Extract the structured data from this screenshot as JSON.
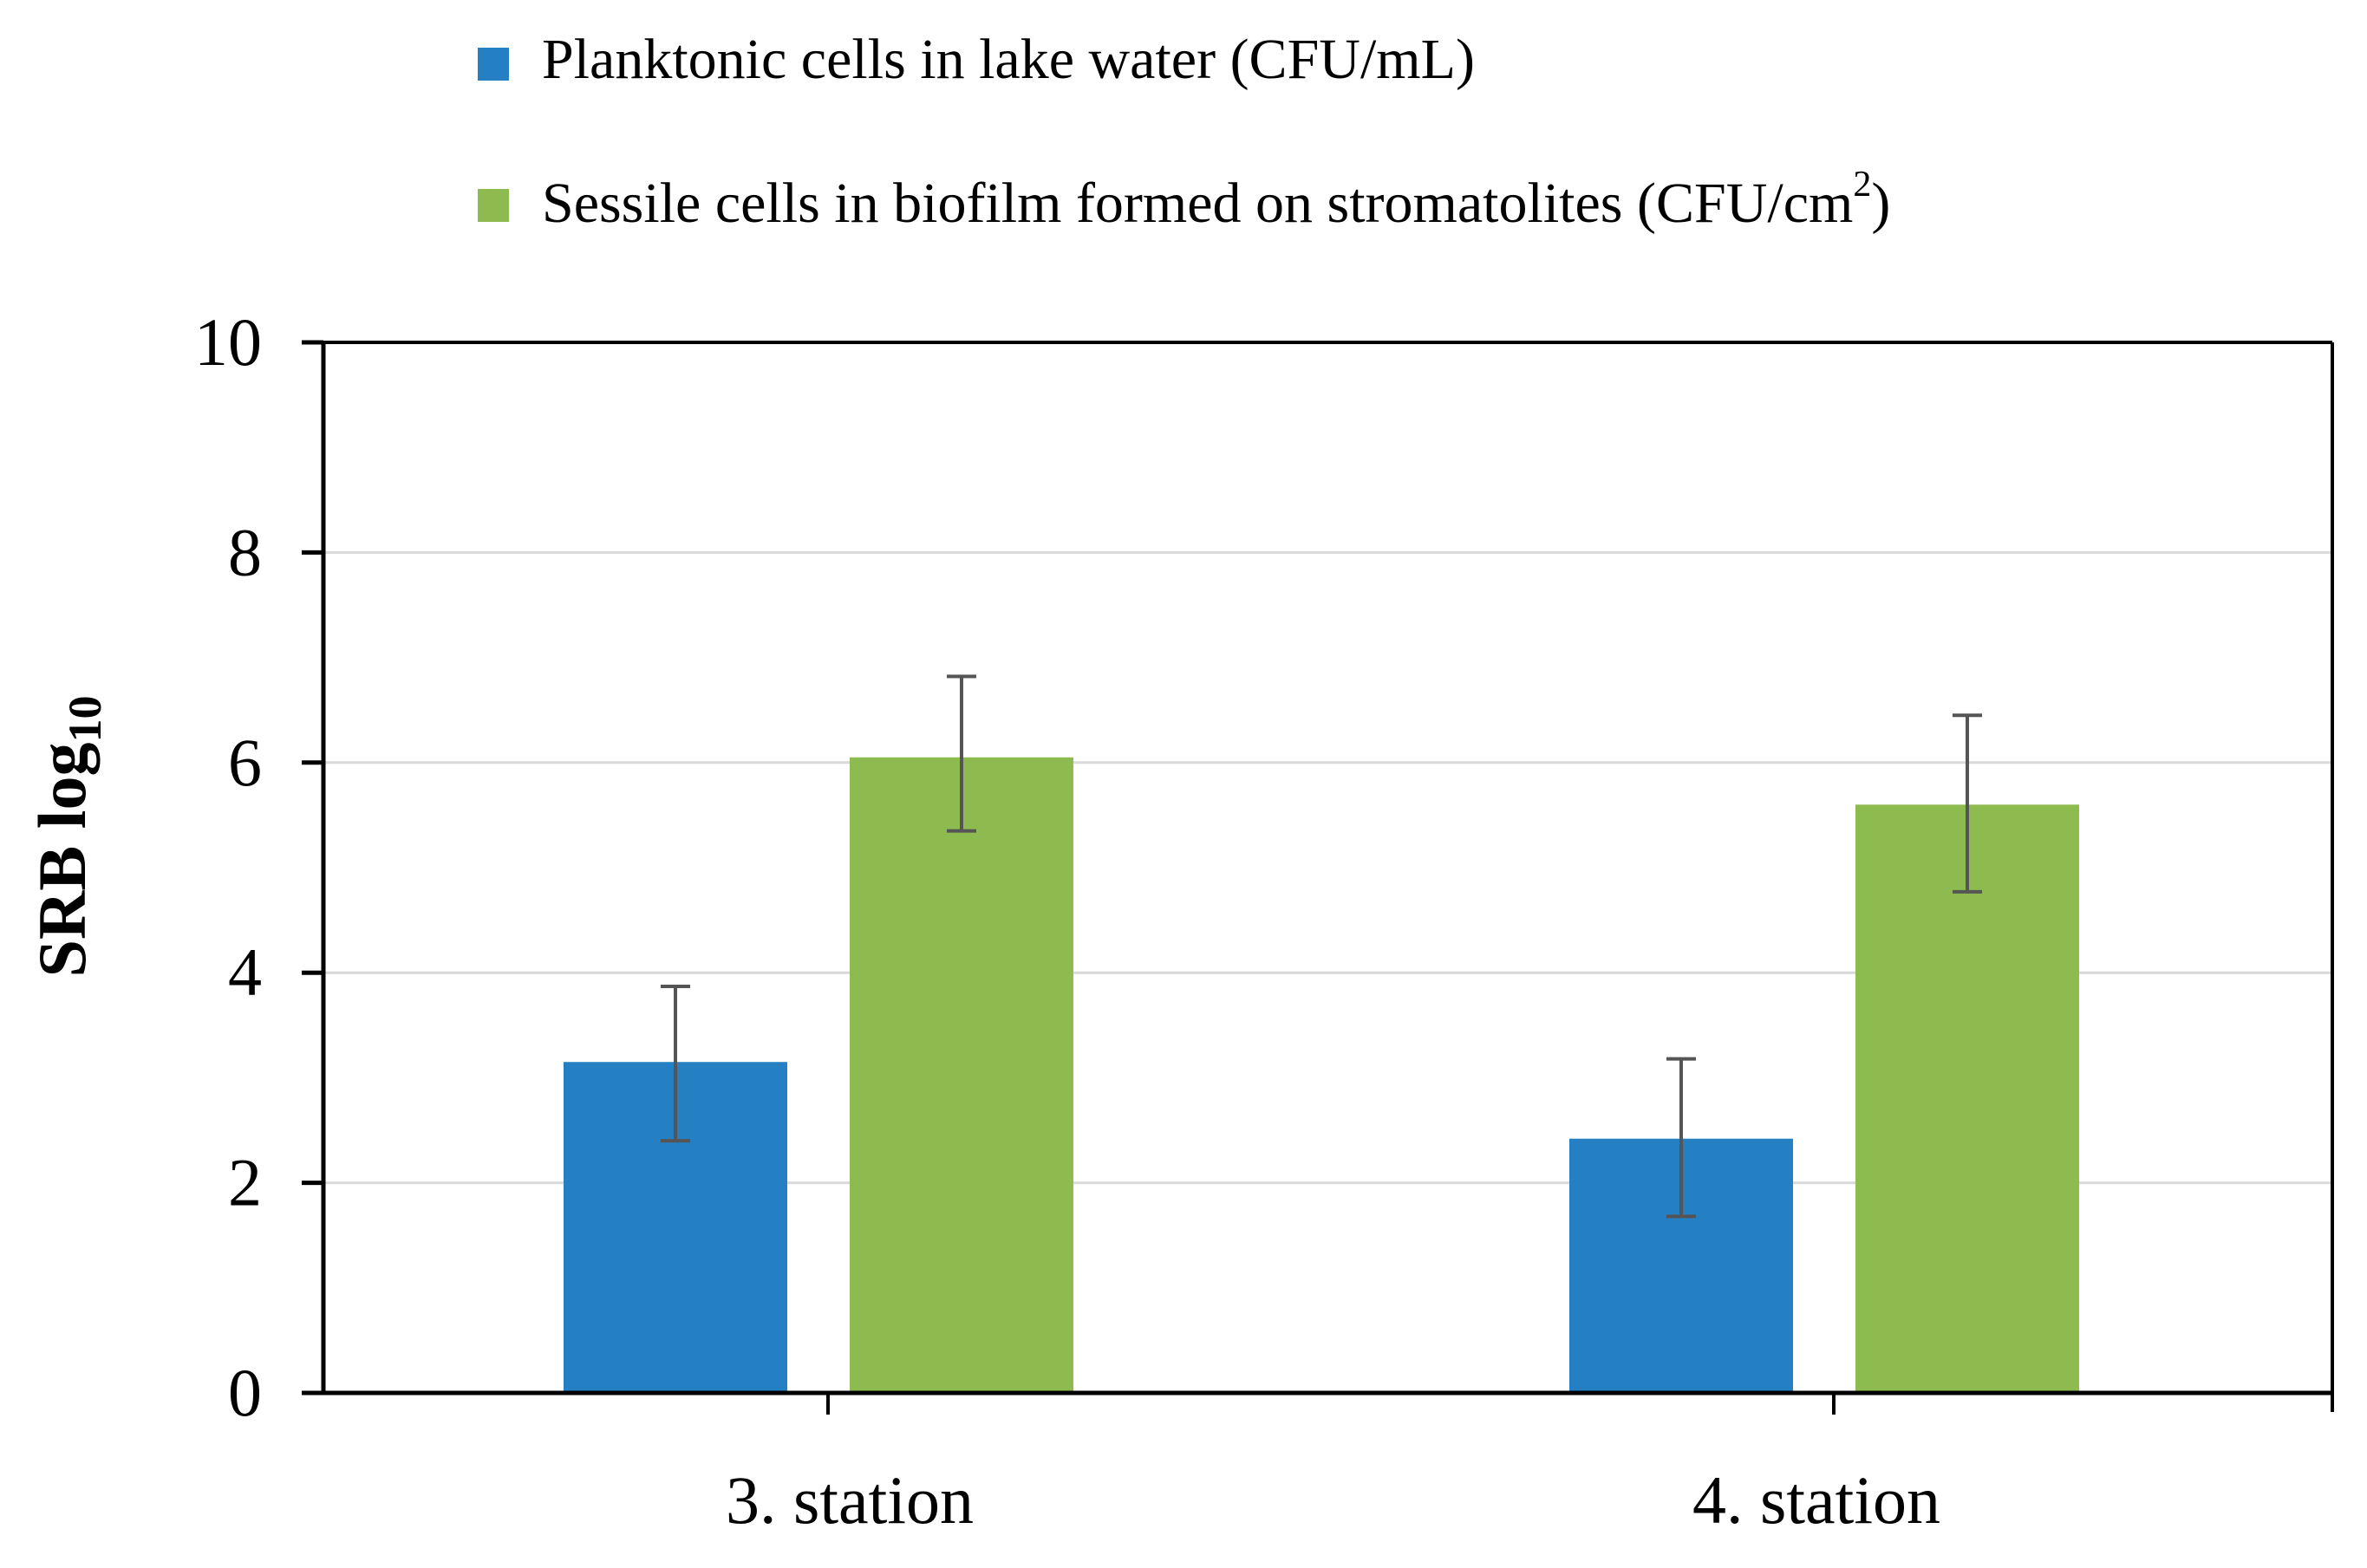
{
  "chart_data": {
    "type": "bar",
    "ylabel": {
      "main": "SRB log",
      "subscript": "10"
    },
    "ylim": [
      0,
      10
    ],
    "yticks": [
      "0",
      "2",
      "4",
      "6",
      "8",
      "10"
    ],
    "ytick_values": [
      0,
      2,
      4,
      6,
      8,
      10
    ],
    "grid": true,
    "categories": [
      "3. station",
      "4. station"
    ],
    "legend": {
      "position": "top",
      "items": [
        {
          "label": "Planktonic cells in lake water (CFU/mL)",
          "color": "#2580C3"
        },
        {
          "label": "Sessile cells in biofilm formed on stromatolites (CFU/cm",
          "superscript": "2",
          "label_end": ")",
          "color": "#8EBB4F"
        }
      ]
    },
    "series": [
      {
        "name": "Planktonic cells in lake water (CFU/mL)",
        "color": "#2580C3",
        "values": [
          3.15,
          2.42
        ],
        "error_low": [
          2.4,
          1.68
        ],
        "error_high": [
          3.87,
          3.18
        ]
      },
      {
        "name": "Sessile cells in biofilm formed on stromatolites (CFU/cm2)",
        "color": "#8EBB4F",
        "values": [
          6.05,
          5.6
        ],
        "error_low": [
          5.35,
          4.77
        ],
        "error_high": [
          6.82,
          6.45
        ]
      }
    ]
  }
}
